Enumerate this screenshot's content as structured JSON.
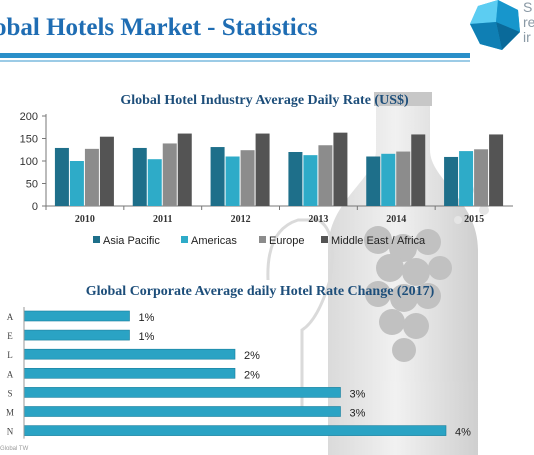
{
  "header": {
    "title": "obal Hotels Market - Statistics",
    "logo_letters": [
      "S",
      "re",
      "ir"
    ]
  },
  "footer": {
    "source_text": "Global TW"
  },
  "colors": {
    "title": "#1f6db3",
    "rule": "#2a8fc9",
    "asia_pacific": "#1e6f8a",
    "americas": "#2eabc8",
    "europe": "#8c8c8c",
    "middle_east_africa": "#545454",
    "hbar": "#2aa3c4"
  },
  "chart_data": [
    {
      "type": "bar",
      "title": "Global Hotel Industry Average Daily Rate (US$)",
      "categories": [
        "2010",
        "2011",
        "2012",
        "2013",
        "2014",
        "2015"
      ],
      "series": [
        {
          "name": "Asia Pacific",
          "values": [
            129,
            129,
            131,
            120,
            110,
            109
          ]
        },
        {
          "name": "Americas",
          "values": [
            100,
            104,
            110,
            113,
            116,
            122
          ]
        },
        {
          "name": "Europe",
          "values": [
            127,
            139,
            124,
            135,
            121,
            126
          ]
        },
        {
          "name": "Middle East / Africa",
          "values": [
            154,
            161,
            161,
            163,
            159,
            159
          ]
        }
      ],
      "ylim": [
        0,
        200
      ],
      "yticks": [
        0,
        50,
        100,
        150,
        200
      ],
      "legend": "bottom",
      "grid": false
    },
    {
      "type": "bar",
      "orientation": "horizontal",
      "title": "Global Corporate Average daily Hotel Rate Change (2017)",
      "categories": [
        "A",
        "E",
        "L",
        "A",
        "S",
        "M",
        "N"
      ],
      "values": [
        1,
        1,
        2,
        2,
        3,
        3,
        4
      ],
      "value_labels": [
        "1%",
        "1%",
        "2%",
        "2%",
        "3%",
        "3%",
        "4%"
      ],
      "xlim": [
        0,
        4
      ]
    }
  ]
}
